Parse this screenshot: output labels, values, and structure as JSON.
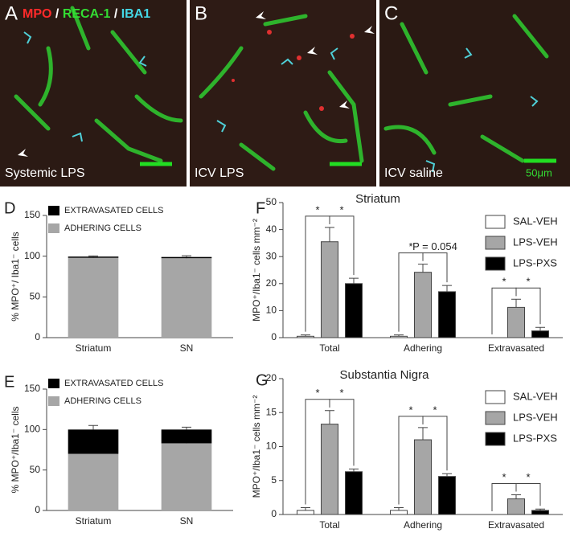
{
  "stain_legend": [
    "MPO",
    "/",
    "RECA-1",
    "/",
    "IBA1"
  ],
  "figure_panels": [
    {
      "letter": "A",
      "caption": "Systemic LPS"
    },
    {
      "letter": "B",
      "caption": "ICV LPS"
    },
    {
      "letter": "C",
      "caption": "ICV saline"
    }
  ],
  "scale_label": "50μm",
  "chart_data": [
    {
      "panel": "D",
      "type": "stacked_bar",
      "ylabel": "% MPO⁺/ Iba1⁻ cells",
      "categories": [
        "Striatum",
        "SN"
      ],
      "ylim": [
        0,
        150
      ],
      "yticks": [
        0,
        50,
        100,
        150
      ],
      "series": [
        {
          "name": "EXTRAVASATED CELLS",
          "color": "#000000",
          "values": [
            1.5,
            1.5
          ],
          "errors": [
            0.8,
            1.5
          ]
        },
        {
          "name": "ADHERING CELLS",
          "color": "#a6a6a6",
          "values": [
            98,
            97.5
          ],
          "errors": [
            0.5,
            0.8
          ]
        }
      ]
    },
    {
      "panel": "E",
      "type": "stacked_bar",
      "ylabel": "% MPO⁺/Iba1⁻ cells",
      "categories": [
        "Striatum",
        "SN"
      ],
      "ylim": [
        0,
        150
      ],
      "yticks": [
        0,
        50,
        100,
        150
      ],
      "series": [
        {
          "name": "EXTRAVASATED CELLS",
          "color": "#000000",
          "values": [
            30,
            17
          ],
          "errors": [
            5,
            3
          ]
        },
        {
          "name": "ADHERING CELLS",
          "color": "#a6a6a6",
          "values": [
            70,
            83
          ],
          "errors": [
            3,
            2
          ]
        }
      ]
    },
    {
      "panel": "F",
      "type": "bar",
      "title": "Striatum",
      "ylabel": "MPO⁺/Iba1⁻ cells  mm⁻²",
      "categories": [
        "Total",
        "Adhering",
        "Extravasated"
      ],
      "ylim": [
        0,
        50
      ],
      "yticks": [
        0,
        10,
        20,
        30,
        40,
        50
      ],
      "series": [
        {
          "name": "SAL-VEH",
          "color": "#ffffff",
          "values": [
            0.5,
            0.5,
            0
          ],
          "errors": [
            0.5,
            0.5,
            0
          ]
        },
        {
          "name": "LPS-VEH",
          "color": "#a6a6a6",
          "values": [
            35.5,
            24.2,
            11.2
          ],
          "errors": [
            5.3,
            3,
            3
          ]
        },
        {
          "name": "LPS-PXS",
          "color": "#000000",
          "values": [
            20,
            17,
            2.5
          ],
          "errors": [
            2,
            2.3,
            1.3
          ]
        }
      ],
      "annotations": [
        "*",
        "*",
        "*",
        "P = 0.054",
        "*",
        "*"
      ]
    },
    {
      "panel": "G",
      "type": "bar",
      "title": "Substantia Nigra",
      "ylabel": "MPO⁺/Iba1⁻ cells  mm⁻²",
      "categories": [
        "Total",
        "Adhering",
        "Extravasated"
      ],
      "ylim": [
        0,
        20
      ],
      "yticks": [
        0,
        5,
        10,
        15,
        20
      ],
      "series": [
        {
          "name": "SAL-VEH",
          "color": "#ffffff",
          "values": [
            0.6,
            0.6,
            0
          ],
          "errors": [
            0.4,
            0.4,
            0
          ]
        },
        {
          "name": "LPS-VEH",
          "color": "#a6a6a6",
          "values": [
            13.3,
            11,
            2.3
          ],
          "errors": [
            2,
            1.8,
            0.6
          ]
        },
        {
          "name": "LPS-PXS",
          "color": "#000000",
          "values": [
            6.3,
            5.6,
            0.6
          ],
          "errors": [
            0.4,
            0.4,
            0.2
          ]
        }
      ],
      "annotations": [
        "*",
        "*",
        "*",
        "*",
        "*",
        "*"
      ]
    }
  ]
}
